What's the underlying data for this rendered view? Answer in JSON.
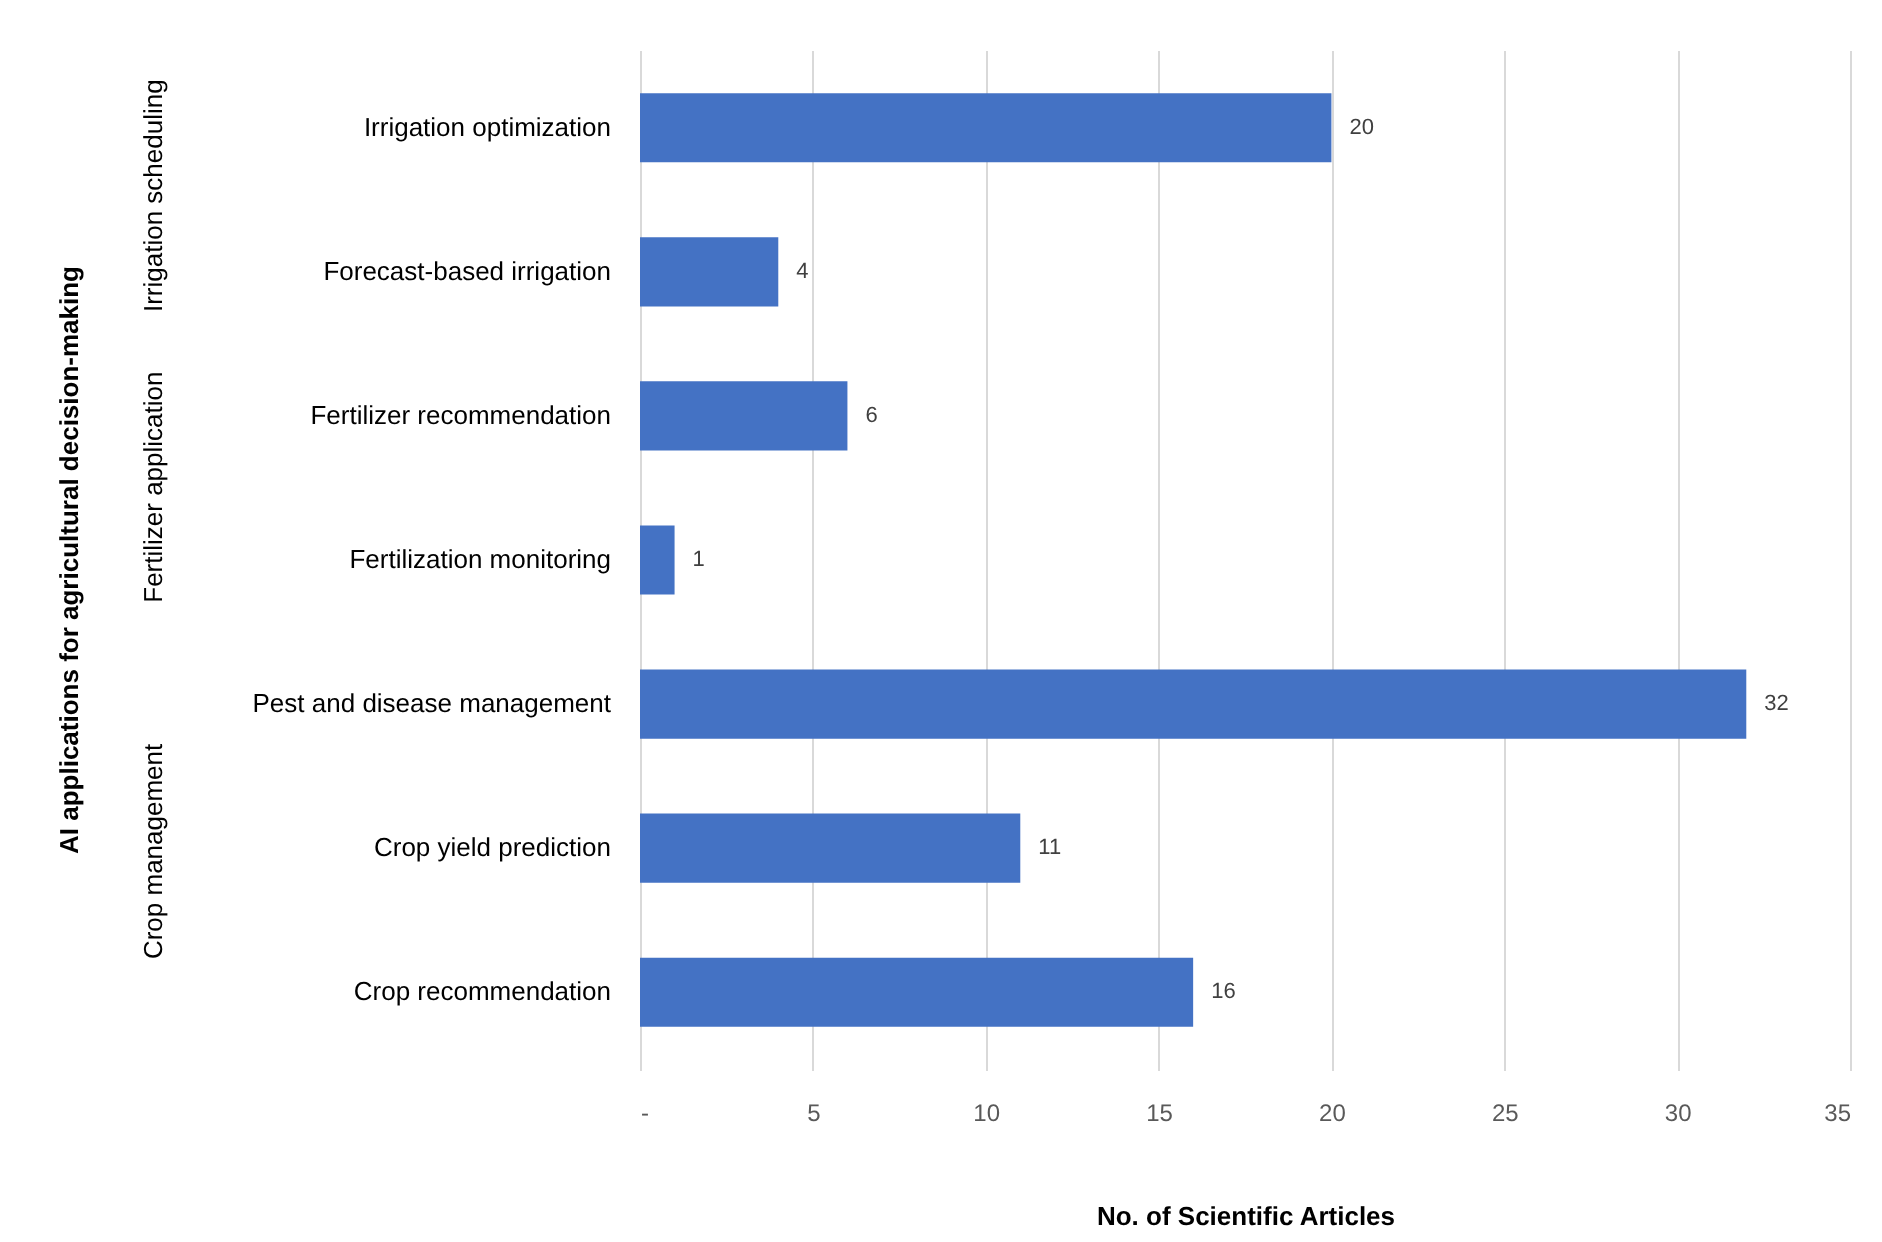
{
  "chart_data": {
    "type": "bar",
    "orientation": "horizontal",
    "xlabel": "No. of Scientific Articles",
    "categories": [
      "Irrigation optimization",
      "Forecast-based irrigation",
      "Fertilizer recommendation",
      "Fertilization monitoring",
      "Pest and disease management",
      "Crop yield prediction",
      "Crop recommendation"
    ],
    "values": [
      20,
      4,
      6,
      1,
      32,
      11,
      16
    ],
    "color": "#4472c4",
    "xlim": [
      0,
      35
    ],
    "xticks": [
      {
        "value": 0,
        "label": "-"
      },
      5,
      10,
      15,
      20,
      25,
      30,
      35
    ],
    "grid": "x",
    "data_labels": true,
    "annotations": [
      "Irrigation scheduling",
      "Fertilizer application",
      "Crop management",
      "AI applications for agricultural decision-making"
    ]
  }
}
